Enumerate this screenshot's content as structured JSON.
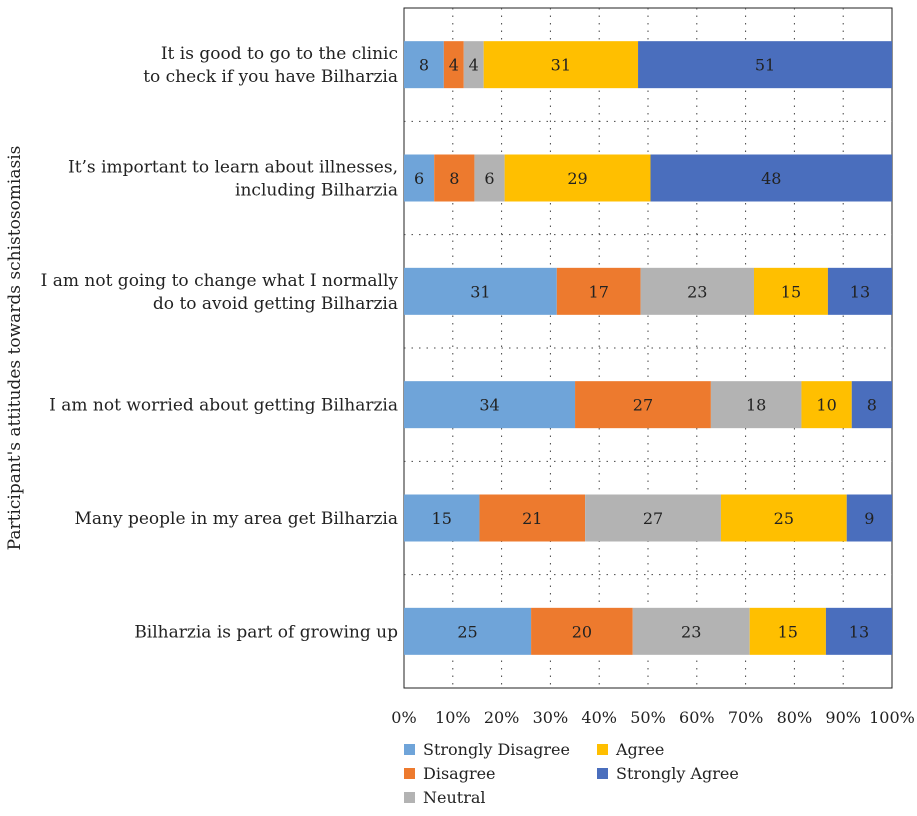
{
  "chart_data": {
    "type": "bar",
    "orientation": "horizontal",
    "stacked": "percent",
    "title": "",
    "xlabel": "",
    "ylabel": "Participant's attitudes towards schistosomiasis",
    "xlim": [
      0,
      100
    ],
    "x_ticks": [
      "0%",
      "10%",
      "20%",
      "30%",
      "40%",
      "50%",
      "60%",
      "70%",
      "80%",
      "90%",
      "100%"
    ],
    "grid": "vertical dotted",
    "legend_position": "bottom-left",
    "categories": [
      [
        "It is good to go to the clinic",
        "to check if you have Bilharzia"
      ],
      [
        "It’s important to learn about illnesses,",
        "including Bilharzia"
      ],
      [
        "I am not going to change what I normally",
        "do to avoid getting Bilharzia"
      ],
      [
        "I am not worried about getting Bilharzia"
      ],
      [
        "Many people in my area get Bilharzia"
      ],
      [
        "Bilharzia is part of growing up"
      ]
    ],
    "series": [
      {
        "name": "Strongly Disagree",
        "color": "#6fa4d9",
        "values": [
          8,
          6,
          31,
          34,
          15,
          25
        ]
      },
      {
        "name": "Disagree",
        "color": "#ed7a2e",
        "values": [
          4,
          8,
          17,
          27,
          21,
          20
        ]
      },
      {
        "name": "Neutral",
        "color": "#b3b3b3",
        "values": [
          4,
          6,
          23,
          18,
          27,
          23
        ]
      },
      {
        "name": "Agree",
        "color": "#ffbf00",
        "values": [
          31,
          29,
          15,
          10,
          25,
          15
        ]
      },
      {
        "name": "Strongly Agree",
        "color": "#4a6ebd",
        "values": [
          51,
          48,
          13,
          8,
          9,
          13
        ]
      }
    ]
  }
}
